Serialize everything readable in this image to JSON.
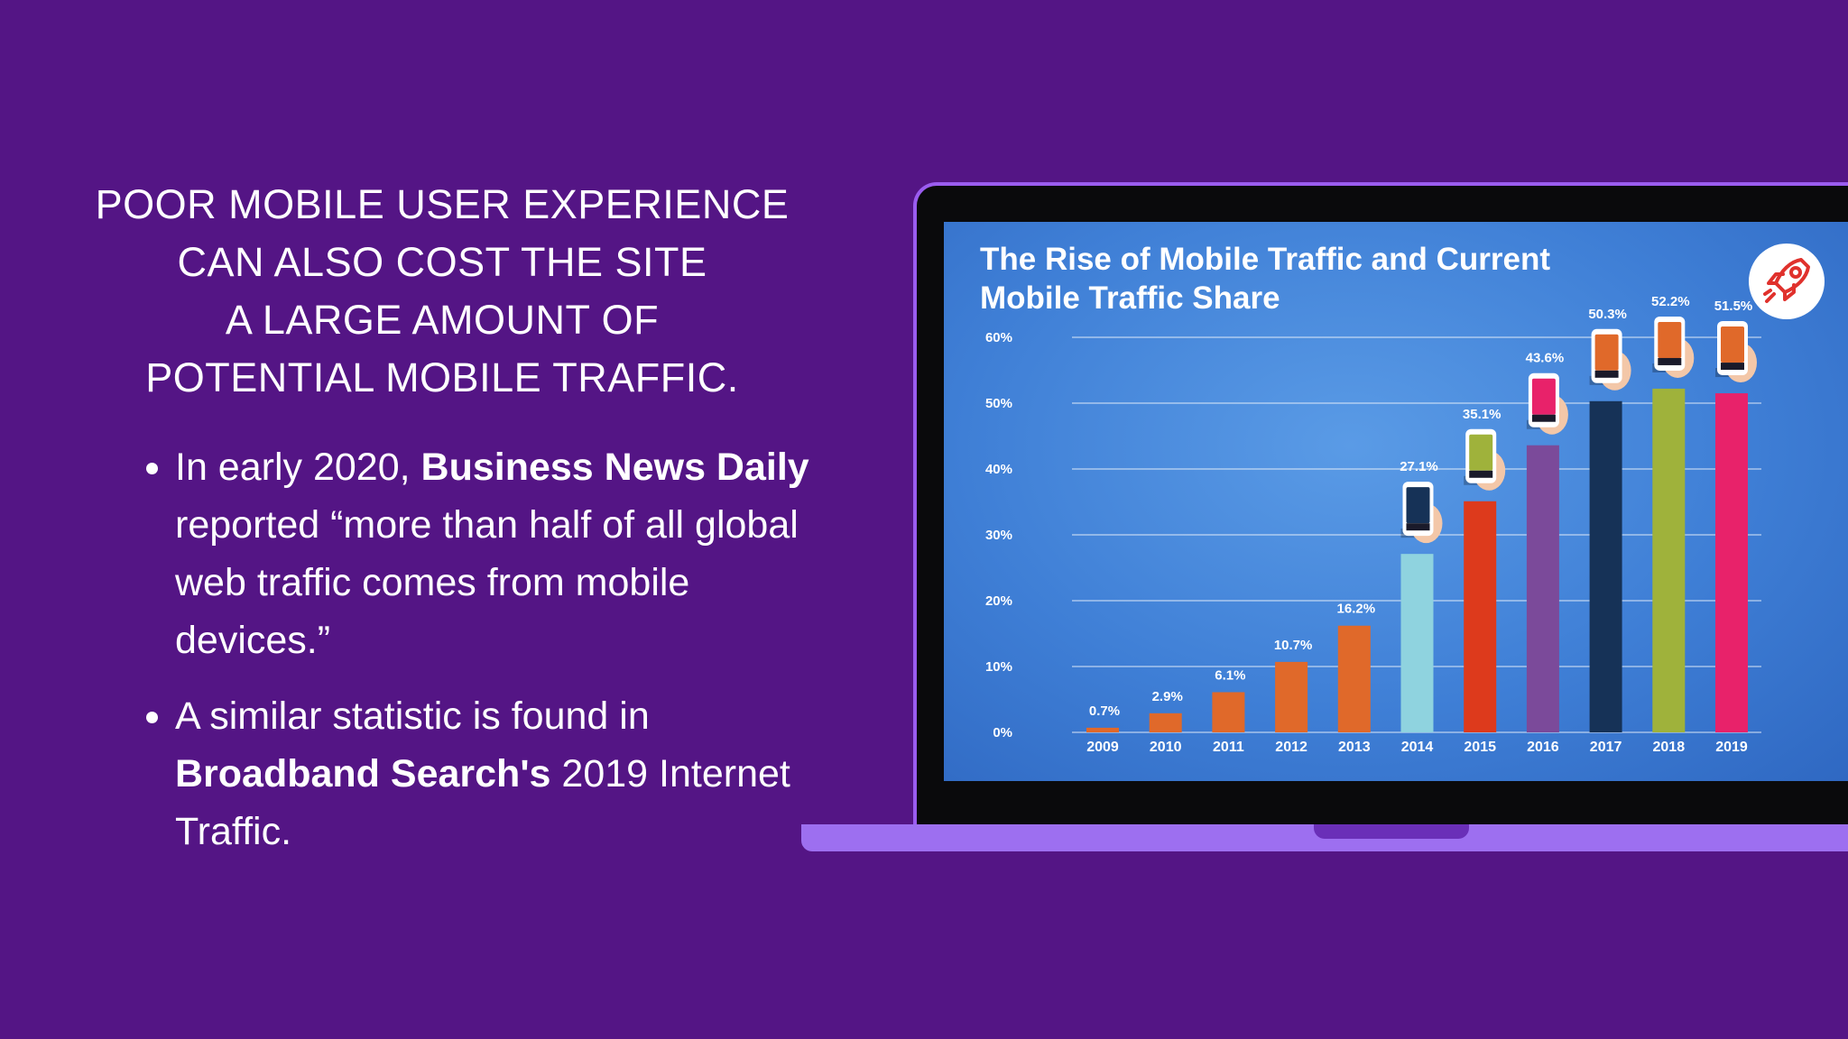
{
  "heading": {
    "line1": "POOR MOBILE USER EXPERIENCE",
    "line2": "CAN ALSO COST THE SITE",
    "line3": "A LARGE AMOUNT OF",
    "line4": "POTENTIAL MOBILE TRAFFIC."
  },
  "bullets": [
    {
      "pre": "In early 2020, ",
      "bold": "Business News Daily",
      "post": " reported “more than half of all global web traffic comes from mobile devices.”"
    },
    {
      "pre": "A similar statistic is found in ",
      "bold": "Broadband Search's",
      "post": " 2019 Internet Traffic."
    }
  ],
  "icons": {
    "rocket": "rocket-icon"
  },
  "colors": {
    "background": "#541585",
    "panel": "#3f7fd6",
    "rocket": "#e0312c"
  },
  "chart_data": {
    "type": "bar",
    "title_line1": "The Rise of Mobile Traffic and Current",
    "title_line2": "Mobile Traffic Share",
    "categories": [
      "2009",
      "2010",
      "2011",
      "2012",
      "2013",
      "2014",
      "2015",
      "2016",
      "2017",
      "2018",
      "2019"
    ],
    "values": [
      0.7,
      2.9,
      6.1,
      10.7,
      16.2,
      27.1,
      35.1,
      43.6,
      50.3,
      52.2,
      51.5
    ],
    "value_labels": [
      "0.7%",
      "2.9%",
      "6.1%",
      "10.7%",
      "16.2%",
      "27.1%",
      "35.1%",
      "43.6%",
      "50.3%",
      "52.2%",
      "51.5%"
    ],
    "bar_colors": [
      "#e0692a",
      "#e0692a",
      "#e0692a",
      "#e0692a",
      "#e0692a",
      "#8fd3df",
      "#dd3a1c",
      "#7b4a9a",
      "#163257",
      "#9fb23b",
      "#e8226a"
    ],
    "yticks": [
      "0%",
      "10%",
      "20%",
      "30%",
      "40%",
      "50%",
      "60%"
    ],
    "ylim": [
      0,
      60
    ],
    "grid": true,
    "legend": "none"
  }
}
